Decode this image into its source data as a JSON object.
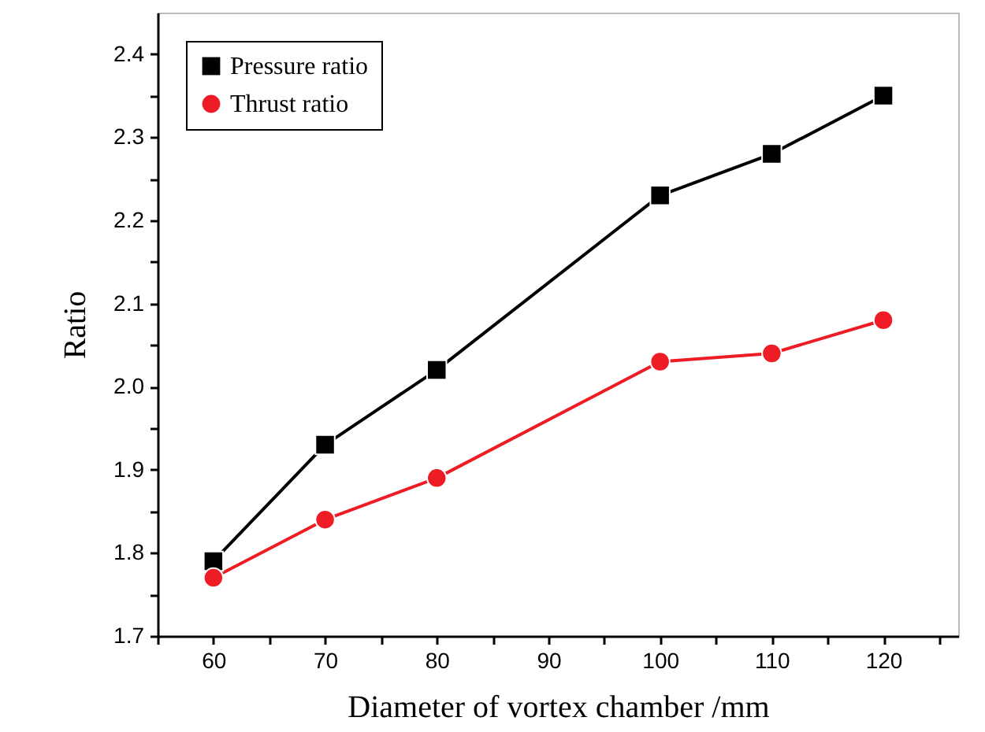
{
  "chart_data": {
    "type": "line",
    "xlabel": "Diameter of vortex chamber /mm",
    "ylabel": "Ratio",
    "x": [
      60,
      70,
      80,
      100,
      110,
      120
    ],
    "series": [
      {
        "name": "Pressure ratio",
        "color": "#000000",
        "marker": "square",
        "values": [
          1.79,
          1.93,
          2.02,
          2.23,
          2.28,
          2.35
        ]
      },
      {
        "name": "Thrust ratio",
        "color": "#ee1c25",
        "marker": "circle",
        "values": [
          1.77,
          1.84,
          1.89,
          2.03,
          2.04,
          2.08
        ]
      }
    ],
    "xlim": [
      55,
      126.7
    ],
    "xticks": [
      {
        "value": 55,
        "label": null
      },
      60,
      {
        "value": 65,
        "label": null
      },
      70,
      {
        "value": 75,
        "label": null
      },
      80,
      {
        "value": 85,
        "label": null
      },
      90,
      {
        "value": 95,
        "label": null
      },
      100,
      {
        "value": 105,
        "label": null
      },
      110,
      {
        "value": 115,
        "label": null
      },
      120,
      {
        "value": 125,
        "label": null
      }
    ],
    "ylim": [
      1.7,
      2.45
    ],
    "yticks": [
      {
        "value": 1.7,
        "label": "1.7"
      },
      {
        "value": 1.75,
        "label": null
      },
      {
        "value": 1.8,
        "label": "1.8"
      },
      {
        "value": 1.85,
        "label": null
      },
      {
        "value": 1.9,
        "label": "1.9"
      },
      {
        "value": 1.95,
        "label": null
      },
      {
        "value": 2.0,
        "label": "2.0"
      },
      {
        "value": 2.05,
        "label": null
      },
      {
        "value": 2.1,
        "label": "2.1"
      },
      {
        "value": 2.15,
        "label": null
      },
      {
        "value": 2.2,
        "label": "2.2"
      },
      {
        "value": 2.25,
        "label": null
      },
      {
        "value": 2.3,
        "label": "2.3"
      },
      {
        "value": 2.35,
        "label": null
      },
      {
        "value": 2.4,
        "label": "2.4"
      }
    ],
    "grid": false,
    "legend": "top left"
  }
}
